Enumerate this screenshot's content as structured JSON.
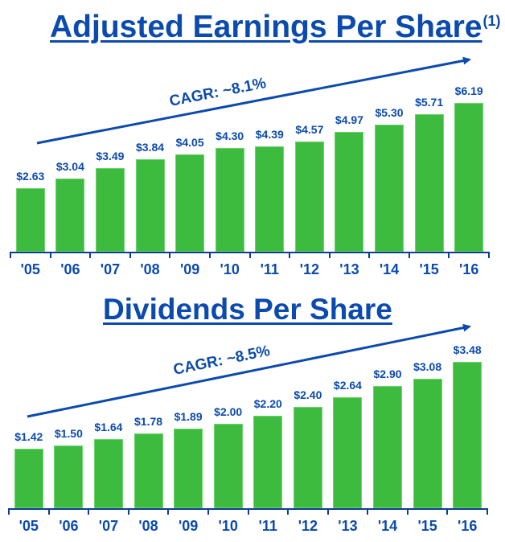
{
  "colors": {
    "title": "#0B4AAE",
    "bar": "#3DBB3F",
    "axis": "#0B3E8F",
    "arrow": "#0B4AAE"
  },
  "eps": {
    "title": "Adjusted Earnings Per Share",
    "footnote": "(1)",
    "cagr": "CAGR: ~8.1%"
  },
  "dps": {
    "title": "Dividends Per Share",
    "cagr": "CAGR: ~8.5%"
  },
  "chart_data": [
    {
      "type": "bar",
      "title": "Adjusted Earnings Per Share(1)",
      "annotation": "CAGR: ~8.1%",
      "categories": [
        "'05",
        "'06",
        "'07",
        "'08",
        "'09",
        "'10",
        "'11",
        "'12",
        "'13",
        "'14",
        "'15",
        "'16"
      ],
      "values": [
        2.63,
        3.04,
        3.49,
        3.84,
        4.05,
        4.3,
        4.39,
        4.57,
        4.97,
        5.3,
        5.71,
        6.19
      ],
      "labels": [
        "$2.63",
        "$3.04",
        "$3.49",
        "$3.84",
        "$4.05",
        "$4.30",
        "$4.39",
        "$4.57",
        "$4.97",
        "$5.30",
        "$5.71",
        "$6.19"
      ],
      "xlabel": "",
      "ylabel": "",
      "ylim": [
        0,
        6.5
      ],
      "grid": false,
      "legend": null
    },
    {
      "type": "bar",
      "title": "Dividends Per Share",
      "annotation": "CAGR: ~8.5%",
      "categories": [
        "'05",
        "'06",
        "'07",
        "'08",
        "'09",
        "'10",
        "'11",
        "'12",
        "'13",
        "'14",
        "'15",
        "'16"
      ],
      "values": [
        1.42,
        1.5,
        1.64,
        1.78,
        1.89,
        2.0,
        2.2,
        2.4,
        2.64,
        2.9,
        3.08,
        3.48
      ],
      "labels": [
        "$1.42",
        "$1.50",
        "$1.64",
        "$1.78",
        "$1.89",
        "$2.00",
        "$2.20",
        "$2.40",
        "$2.64",
        "$2.90",
        "$3.08",
        "$3.48"
      ],
      "xlabel": "",
      "ylabel": "",
      "ylim": [
        0,
        3.7
      ],
      "grid": false,
      "legend": null
    }
  ]
}
